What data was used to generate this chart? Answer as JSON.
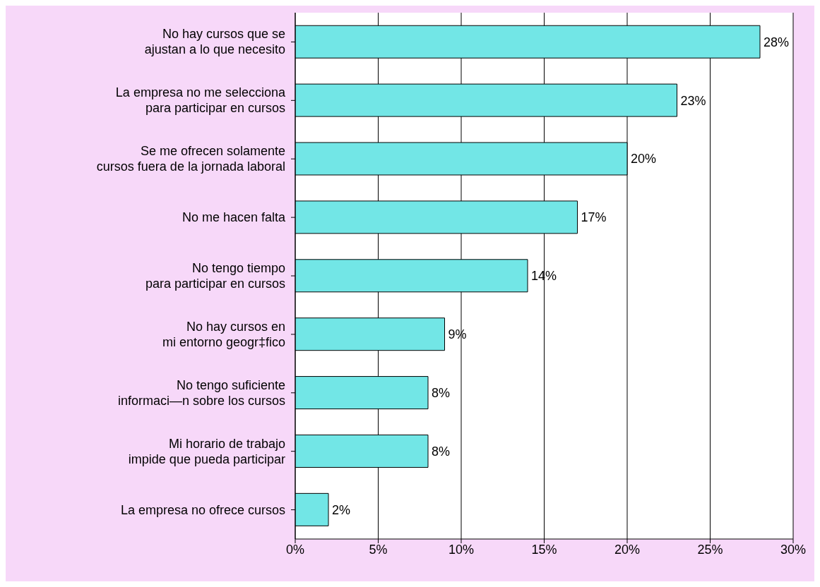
{
  "chart_data": {
    "type": "bar",
    "orientation": "horizontal",
    "categories": [
      "No hay cursos que se\najustan a lo que necesito",
      "La empresa no me selecciona\npara participar en cursos",
      "Se me ofrecen solamente\ncursos fuera de la jornada laboral",
      "No me hacen falta",
      "No tengo tiempo\npara participar en cursos",
      "No hay cursos en\nmi entorno geogr‡fico",
      "No tengo suficiente\ninformaci—n sobre los cursos",
      "Mi horario de trabajo\nimpide que pueda participar",
      "La empresa no ofrece cursos"
    ],
    "values": [
      28,
      23,
      20,
      17,
      14,
      9,
      8,
      8,
      2
    ],
    "value_labels": [
      "28%",
      "23%",
      "20%",
      "17%",
      "14%",
      "9%",
      "8%",
      "8%",
      "2%"
    ],
    "color": "#72e6e6",
    "xlim": [
      0,
      30
    ],
    "xticks": [
      {
        "value": 0,
        "label": "0%"
      },
      {
        "value": 5,
        "label": "5%"
      },
      {
        "value": 10,
        "label": "10%"
      },
      {
        "value": 15,
        "label": "15%"
      },
      {
        "value": 20,
        "label": "20%"
      },
      {
        "value": 25,
        "label": "25%"
      },
      {
        "value": 30,
        "label": "30%"
      }
    ],
    "grid": "x",
    "legend": false
  }
}
